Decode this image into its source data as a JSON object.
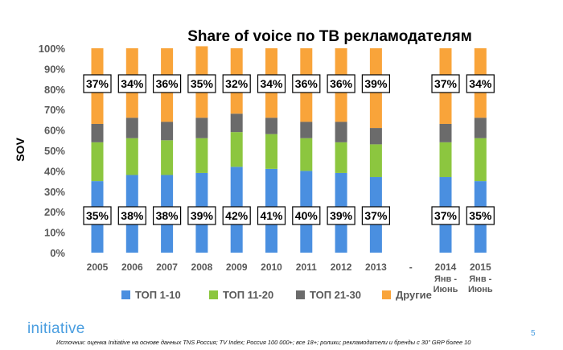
{
  "chart_data": {
    "type": "bar",
    "stacked": true,
    "title": "Share of voice по ТВ рекламодателям",
    "ylabel": "SOV",
    "xlabel": "",
    "ylim": [
      0,
      100
    ],
    "yticks": [
      "0%",
      "10%",
      "20%",
      "30%",
      "40%",
      "50%",
      "60%",
      "70%",
      "80%",
      "90%",
      "100%"
    ],
    "categories": [
      {
        "label": "2005",
        "sub": ""
      },
      {
        "label": "2006",
        "sub": ""
      },
      {
        "label": "2007",
        "sub": ""
      },
      {
        "label": "2008",
        "sub": ""
      },
      {
        "label": "2009",
        "sub": ""
      },
      {
        "label": "2010",
        "sub": ""
      },
      {
        "label": "2011",
        "sub": ""
      },
      {
        "label": "2012",
        "sub": ""
      },
      {
        "label": "2013",
        "sub": ""
      },
      {
        "label": "-",
        "sub": ""
      },
      {
        "label": "2014",
        "sub": "Янв -\nИюнь"
      },
      {
        "label": "2015",
        "sub": "Янв -\nИюнь"
      }
    ],
    "series": [
      {
        "name": "ТОП 1-10",
        "color": "#4a8fe0",
        "values": [
          35,
          38,
          38,
          39,
          42,
          41,
          40,
          39,
          37,
          null,
          37,
          35
        ]
      },
      {
        "name": "ТОП 11-20",
        "color": "#8cc63f",
        "values": [
          19,
          18,
          17,
          17,
          17,
          17,
          16,
          15,
          16,
          null,
          17,
          21
        ]
      },
      {
        "name": "ТОП 21-30",
        "color": "#6b6b6b",
        "values": [
          9,
          10,
          9,
          10,
          9,
          8,
          8,
          10,
          8,
          null,
          9,
          10
        ]
      },
      {
        "name": "Другие",
        "color": "#f9a43a",
        "values": [
          37,
          34,
          36,
          35,
          32,
          34,
          36,
          36,
          39,
          null,
          37,
          34
        ]
      }
    ],
    "data_labels": {
      "bottom": [
        "35%",
        "38%",
        "38%",
        "39%",
        "42%",
        "41%",
        "40%",
        "39%",
        "37%",
        "",
        "37%",
        "35%"
      ],
      "top": [
        "37%",
        "34%",
        "36%",
        "35%",
        "32%",
        "34%",
        "36%",
        "36%",
        "39%",
        "",
        "37%",
        "34%"
      ]
    },
    "legend_position": "bottom"
  },
  "footer": {
    "brand": "initiative",
    "source": "Источник: оценка Initiative на основе данных TNS Россия; TV Index; Россия 100 000+; все 18+; ролики; рекламодатели и бренды с 30\" GRP более 10",
    "page_number": "5"
  }
}
